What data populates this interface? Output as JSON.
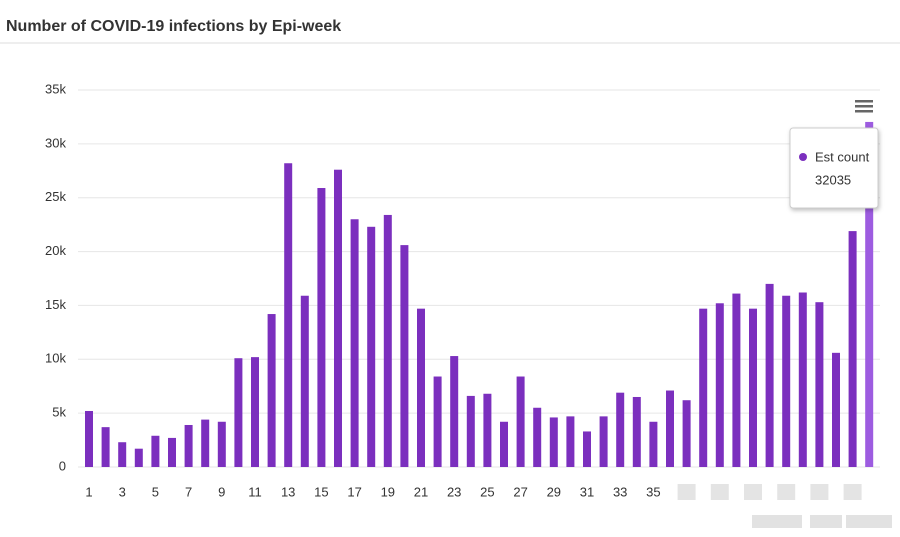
{
  "chart_data": {
    "type": "bar",
    "title": "Number of COVID-19 infections by Epi-week",
    "categories": [
      "1",
      "2",
      "3",
      "4",
      "5",
      "6",
      "7",
      "8",
      "9",
      "10",
      "11",
      "12",
      "13",
      "14",
      "15",
      "16",
      "17",
      "18",
      "19",
      "20",
      "21",
      "22",
      "23",
      "24",
      "25",
      "26",
      "27",
      "28",
      "29",
      "30",
      "31",
      "32",
      "33",
      "34",
      "35",
      "36",
      null,
      null,
      null,
      null,
      null,
      null,
      null,
      null,
      null,
      null,
      null,
      null
    ],
    "series": [
      {
        "name": "Est count",
        "color": "#7b2fbe",
        "highlight_color": "#9d5ce0",
        "values": [
          5200,
          3700,
          2300,
          1700,
          2900,
          2700,
          3900,
          4400,
          4200,
          10100,
          10200,
          14200,
          28200,
          15900,
          25900,
          27600,
          23000,
          22300,
          23400,
          20600,
          14700,
          8400,
          10300,
          6600,
          6800,
          4200,
          8400,
          5500,
          4600,
          4700,
          3300,
          4700,
          6900,
          6500,
          4200,
          7100,
          6200,
          14700,
          15200,
          16100,
          14700,
          17000,
          15900,
          16200,
          15300,
          10600,
          21900,
          32035
        ]
      }
    ],
    "ylim": [
      0,
      35000
    ],
    "yticks": [
      0,
      {
        "value": 5000,
        "label": "5k"
      },
      {
        "value": 10000,
        "label": "10k"
      },
      {
        "value": 15000,
        "label": "15k"
      },
      {
        "value": 20000,
        "label": "20k"
      },
      {
        "value": 25000,
        "label": "25k"
      },
      {
        "value": 30000,
        "label": "30k"
      },
      {
        "value": 35000,
        "label": "35k"
      }
    ],
    "grid": true,
    "highlight_index": 47
  }
}
